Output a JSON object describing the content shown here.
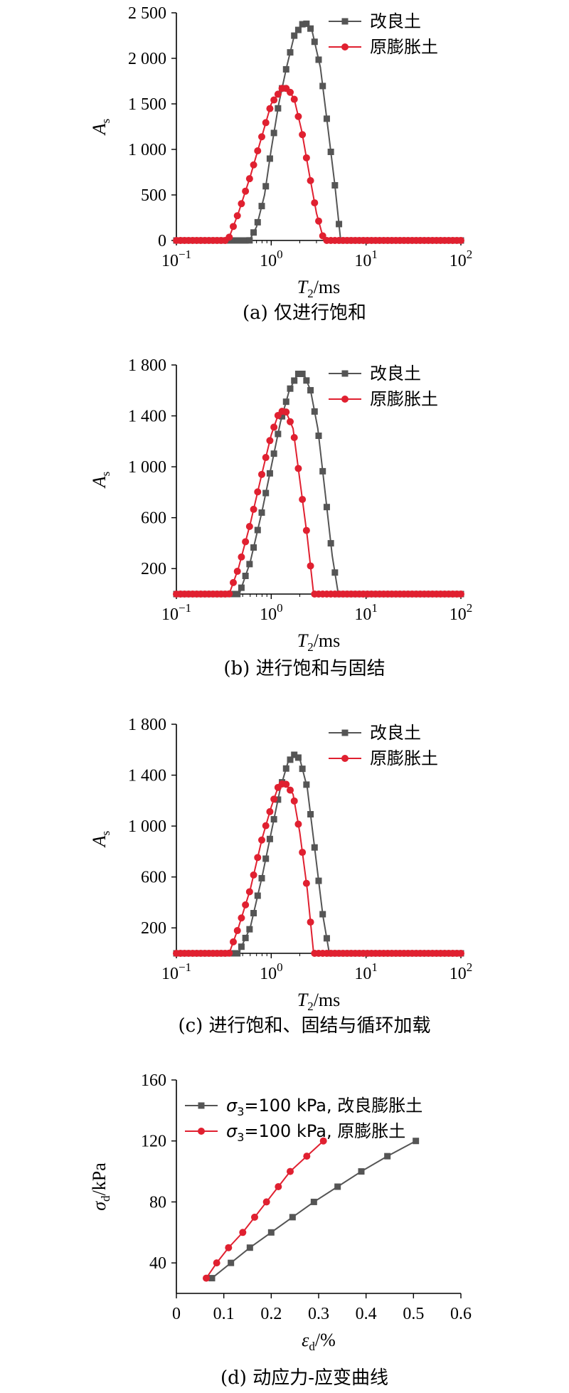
{
  "chart_data": [
    {
      "type": "line",
      "caption": "(a) 仅进行饱和",
      "xlabel": "T2/ms",
      "ylabel": "As",
      "xscale": "log",
      "xlim": [
        0.1,
        100
      ],
      "ylim": [
        0,
        2500
      ],
      "yticks": [
        0,
        500,
        1000,
        1500,
        2000,
        2500
      ],
      "ytick_labels": [
        "0",
        "500",
        "1 000",
        "1 500",
        "2 000",
        "2 500"
      ],
      "xticks": [
        0.1,
        1,
        10,
        100
      ],
      "xtick_labels": [
        [
          "10",
          "−1"
        ],
        [
          "10",
          "0"
        ],
        [
          "10",
          "1"
        ],
        [
          "10",
          "2"
        ]
      ],
      "legend": "top-right",
      "series": [
        {
          "name": "改良土",
          "color": "#555555",
          "marker": "square",
          "x": [
            0.1,
            0.37,
            0.59,
            0.7,
            0.85,
            1.0,
            1.2,
            1.45,
            1.75,
            2.15,
            2.4,
            2.7,
            3.3,
            4.0,
            4.7,
            5.4,
            6.0,
            10,
            30,
            100
          ],
          "y": [
            0,
            0,
            0,
            150,
            500,
            1000,
            1500,
            1900,
            2250,
            2380,
            2380,
            2300,
            1900,
            1200,
            600,
            0,
            0,
            0,
            0,
            0
          ]
        },
        {
          "name": "原膨胀土",
          "color": "#e02030",
          "marker": "circle",
          "x": [
            0.1,
            0.25,
            0.35,
            0.45,
            0.6,
            0.8,
            1.0,
            1.3,
            1.5,
            1.75,
            2.1,
            2.5,
            3.0,
            3.6,
            4.0,
            10,
            30,
            100
          ],
          "y": [
            0,
            0,
            0,
            300,
            700,
            1150,
            1500,
            1670,
            1670,
            1550,
            1200,
            750,
            300,
            0,
            0,
            0,
            0,
            0
          ]
        }
      ]
    },
    {
      "type": "line",
      "caption": "(b) 进行饱和与固结",
      "xlabel": "T2/ms",
      "ylabel": "As",
      "xscale": "log",
      "xlim": [
        0.1,
        100
      ],
      "ylim": [
        0,
        1800
      ],
      "yticks": [
        200,
        600,
        1000,
        1400,
        1800
      ],
      "ytick_labels": [
        "200",
        "600",
        "1 000",
        "1 400",
        "1 800"
      ],
      "xticks": [
        0.1,
        1,
        10,
        100
      ],
      "xtick_labels": [
        [
          "10",
          "−1"
        ],
        [
          "10",
          "0"
        ],
        [
          "10",
          "1"
        ],
        [
          "10",
          "2"
        ]
      ],
      "legend": "top-right",
      "series": [
        {
          "name": "改良土",
          "color": "#555555",
          "marker": "square",
          "x": [
            0.1,
            0.38,
            0.46,
            0.6,
            0.8,
            1.0,
            1.25,
            1.55,
            1.9,
            2.2,
            2.6,
            3.1,
            3.7,
            4.4,
            5.1,
            6.0,
            10,
            30,
            100
          ],
          "y": [
            0,
            0,
            0,
            250,
            650,
            1000,
            1350,
            1600,
            1730,
            1730,
            1600,
            1300,
            800,
            300,
            0,
            0,
            0,
            0,
            0
          ]
        },
        {
          "name": "原膨胀土",
          "color": "#e02030",
          "marker": "circle",
          "x": [
            0.1,
            0.25,
            0.36,
            0.45,
            0.6,
            0.8,
            1.0,
            1.2,
            1.4,
            1.7,
            2.0,
            2.4,
            2.8,
            3.1,
            4.0,
            10,
            30,
            100
          ],
          "y": [
            0,
            0,
            0,
            200,
            550,
            950,
            1250,
            1420,
            1450,
            1300,
            900,
            450,
            0,
            0,
            0,
            0,
            0,
            0
          ]
        }
      ]
    },
    {
      "type": "line",
      "caption": "(c) 进行饱和、固结与循环加载",
      "xlabel": "T2/ms",
      "ylabel": "As",
      "xscale": "log",
      "xlim": [
        0.1,
        100
      ],
      "ylim": [
        0,
        1800
      ],
      "yticks": [
        200,
        600,
        1000,
        1400,
        1800
      ],
      "ytick_labels": [
        "200",
        "600",
        "1 000",
        "1 400",
        "1 800"
      ],
      "xticks": [
        0.1,
        1,
        10,
        100
      ],
      "xtick_labels": [
        [
          "10",
          "−1"
        ],
        [
          "10",
          "0"
        ],
        [
          "10",
          "1"
        ],
        [
          "10",
          "2"
        ]
      ],
      "legend": "top-right",
      "series": [
        {
          "name": "改良土",
          "color": "#555555",
          "marker": "square",
          "x": [
            0.1,
            0.38,
            0.45,
            0.6,
            0.8,
            1.0,
            1.25,
            1.5,
            1.75,
            2.0,
            2.4,
            2.9,
            3.5,
            4.1,
            5.0,
            10,
            30,
            100
          ],
          "y": [
            0,
            0,
            0,
            200,
            600,
            950,
            1300,
            1500,
            1560,
            1530,
            1300,
            800,
            300,
            0,
            0,
            0,
            0,
            0
          ]
        },
        {
          "name": "原膨胀土",
          "color": "#e02030",
          "marker": "circle",
          "x": [
            0.1,
            0.25,
            0.36,
            0.45,
            0.6,
            0.8,
            1.0,
            1.2,
            1.4,
            1.7,
            2.0,
            2.4,
            2.8,
            3.1,
            4.0,
            10,
            30,
            100
          ],
          "y": [
            0,
            0,
            0,
            200,
            500,
            900,
            1150,
            1320,
            1340,
            1250,
            950,
            500,
            0,
            0,
            0,
            0,
            0,
            0
          ]
        }
      ]
    },
    {
      "type": "line",
      "caption": "(d) 动应力-应变曲线",
      "xlabel": "εd/%",
      "ylabel": "σd/kPa",
      "xscale": "linear",
      "xlim": [
        0,
        0.6
      ],
      "ylim": [
        20,
        160
      ],
      "yticks": [
        40,
        80,
        120,
        160
      ],
      "ytick_labels": [
        "40",
        "80",
        "120",
        "160"
      ],
      "xticks": [
        0,
        0.1,
        0.2,
        0.3,
        0.4,
        0.5,
        0.6
      ],
      "xtick_labels": [
        "0",
        "0.1",
        "0.2",
        "0.3",
        "0.4",
        "0.5",
        "0.6"
      ],
      "legend": "top-left",
      "series": [
        {
          "name": "σ3=100 kPa, 改良膨胀土",
          "color": "#555555",
          "marker": "square",
          "x": [
            0.075,
            0.115,
            0.155,
            0.2,
            0.245,
            0.29,
            0.34,
            0.39,
            0.445,
            0.505
          ],
          "y": [
            30,
            40,
            50,
            60,
            70,
            80,
            90,
            100,
            110,
            120
          ]
        },
        {
          "name": "σ3=100 kPa, 原膨胀土",
          "color": "#e02030",
          "marker": "circle",
          "x": [
            0.063,
            0.085,
            0.11,
            0.14,
            0.165,
            0.19,
            0.215,
            0.24,
            0.275,
            0.31
          ],
          "y": [
            30,
            40,
            50,
            60,
            70,
            80,
            90,
            100,
            110,
            120
          ]
        }
      ]
    }
  ]
}
